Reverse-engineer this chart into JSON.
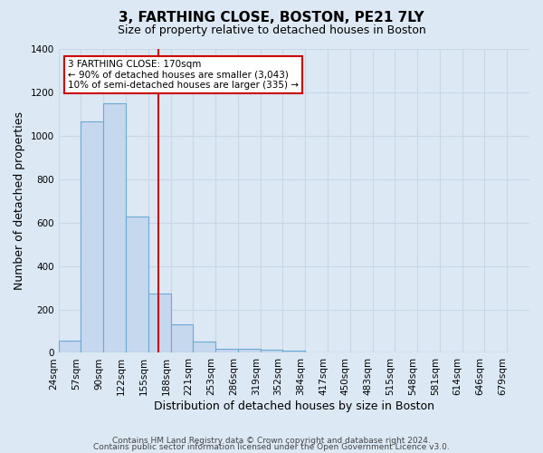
{
  "title": "3, FARTHING CLOSE, BOSTON, PE21 7LY",
  "subtitle": "Size of property relative to detached houses in Boston",
  "xlabel": "Distribution of detached houses by size in Boston",
  "ylabel": "Number of detached properties",
  "footnote1": "Contains HM Land Registry data © Crown copyright and database right 2024.",
  "footnote2": "Contains public sector information licensed under the Open Government Licence v3.0.",
  "bin_labels": [
    "24sqm",
    "57sqm",
    "90sqm",
    "122sqm",
    "155sqm",
    "188sqm",
    "221sqm",
    "253sqm",
    "286sqm",
    "319sqm",
    "352sqm",
    "384sqm",
    "417sqm",
    "450sqm",
    "483sqm",
    "515sqm",
    "548sqm",
    "581sqm",
    "614sqm",
    "646sqm",
    "679sqm"
  ],
  "bar_heights": [
    55,
    1065,
    1150,
    630,
    275,
    130,
    50,
    20,
    20,
    15,
    10,
    0,
    0,
    0,
    0,
    0,
    0,
    0,
    0,
    0
  ],
  "bar_color": "#c5d8ee",
  "bar_edge_color": "#6aaad4",
  "red_line_color": "#cc0000",
  "annotation_text": "3 FARTHING CLOSE: 170sqm\n← 90% of detached houses are smaller (3,043)\n10% of semi-detached houses are larger (335) →",
  "annotation_box_color": "#ffffff",
  "annotation_box_edge": "#cc0000",
  "ylim": [
    0,
    1400
  ],
  "yticks": [
    0,
    200,
    400,
    600,
    800,
    1000,
    1200,
    1400
  ],
  "grid_color": "#c8d8e8",
  "bg_color": "#dce8f4",
  "title_fontsize": 11,
  "subtitle_fontsize": 9,
  "axis_label_fontsize": 9,
  "tick_fontsize": 7.5,
  "footnote_fontsize": 6.5
}
